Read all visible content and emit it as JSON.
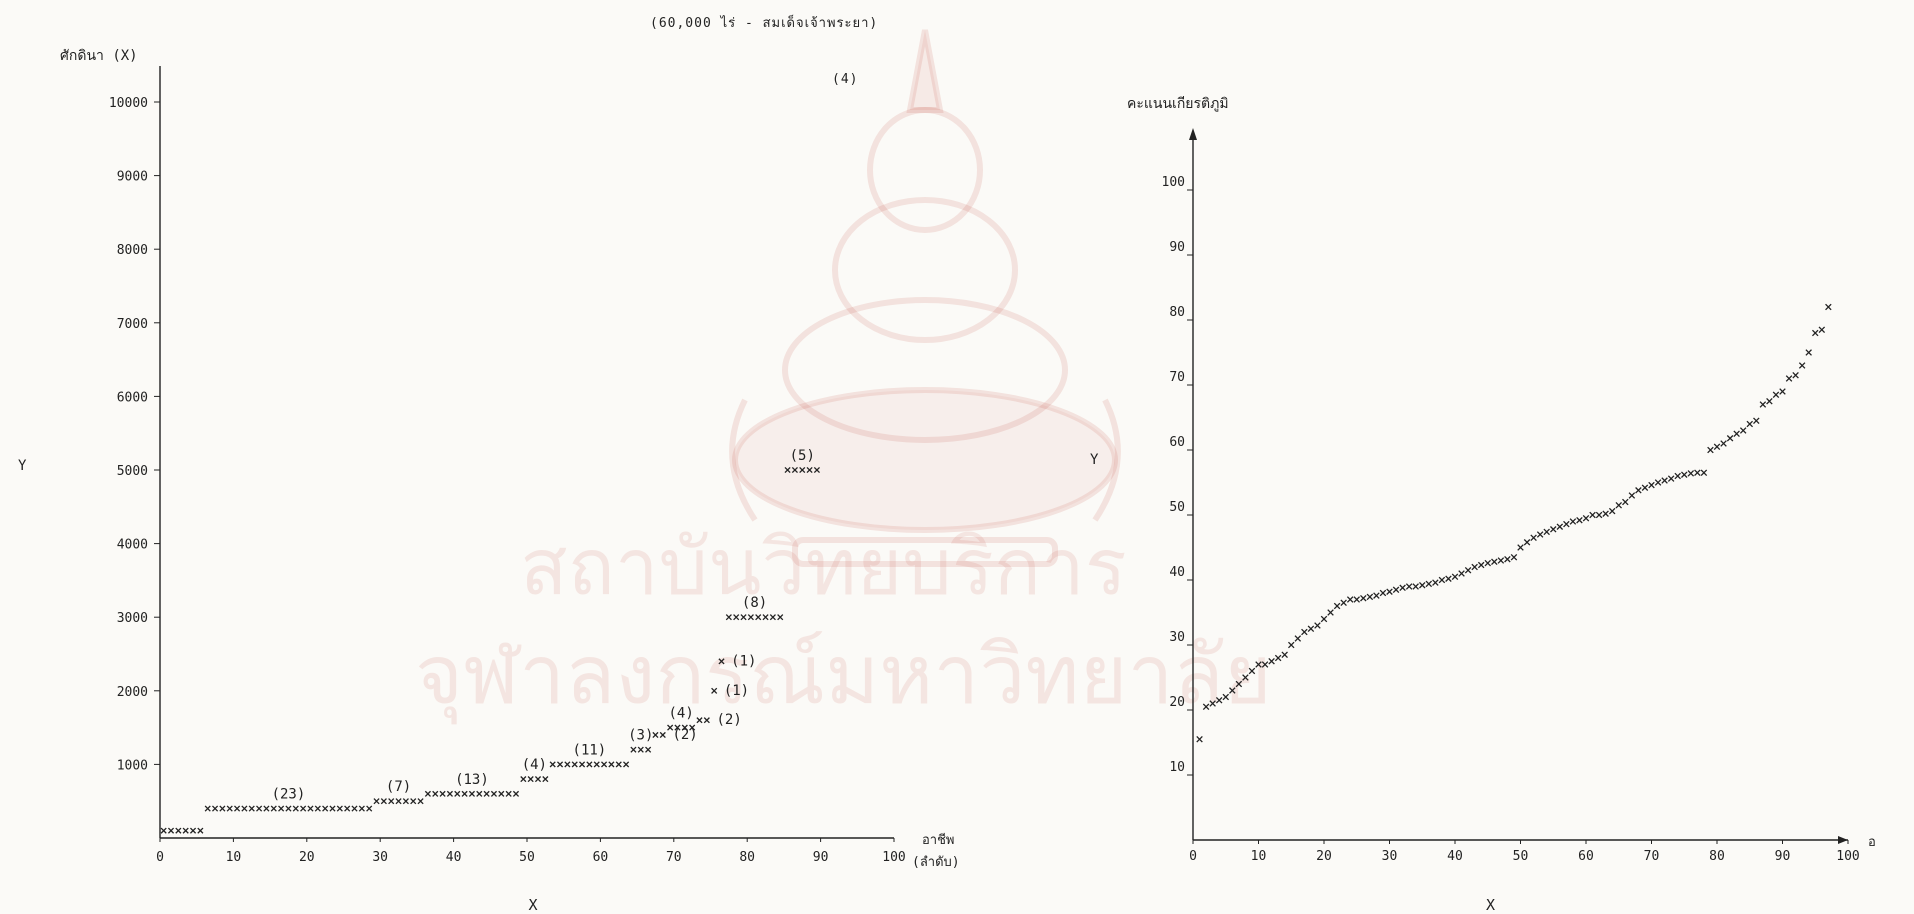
{
  "page": {
    "subtitle": "(60,000 ไร่ - สมเด็จเจ้าพระยา)",
    "top_note": "(4)"
  },
  "watermark": {
    "line1": "สถาบันวิทยบริการ",
    "line2": "จุฬาลงกรณ์มหาวิทยาลัย",
    "color": "#c0392b"
  },
  "chart_data": [
    {
      "type": "scatter",
      "marker": "x",
      "title": "",
      "ylabel": "ศักดินา (X)",
      "ylabel_side": "Y",
      "xlabel": "อาชีพ (ลำดับ)",
      "xlabel_below": "X",
      "xlim": [
        0,
        100
      ],
      "ylim": [
        0,
        10000
      ],
      "x_ticks": [
        0,
        10,
        20,
        30,
        40,
        50,
        60,
        70,
        80,
        90,
        100
      ],
      "y_ticks": [
        1000,
        2000,
        3000,
        4000,
        5000,
        6000,
        7000,
        8000,
        9000,
        10000
      ],
      "segments": [
        {
          "x_start": 0,
          "x_end": 6,
          "y": 100,
          "label": ""
        },
        {
          "x_start": 6,
          "x_end": 29,
          "y": 400,
          "label": "(23)"
        },
        {
          "x_start": 29,
          "x_end": 36,
          "y": 500,
          "label": "(7)"
        },
        {
          "x_start": 36,
          "x_end": 49,
          "y": 600,
          "label": "(13)"
        },
        {
          "x_start": 49,
          "x_end": 53,
          "y": 800,
          "label": "(4)"
        },
        {
          "x_start": 53,
          "x_end": 64,
          "y": 1000,
          "label": "(11)"
        },
        {
          "x_start": 64,
          "x_end": 67,
          "y": 1200,
          "label": "(3)"
        },
        {
          "x_start": 67,
          "x_end": 69,
          "y": 1400,
          "label": "(2)"
        },
        {
          "x_start": 69,
          "x_end": 73,
          "y": 1500,
          "label": "(4)"
        },
        {
          "x_start": 73,
          "x_end": 75,
          "y": 1600,
          "label": "(2)"
        },
        {
          "x_start": 75,
          "x_end": 76,
          "y": 2000,
          "label": "(1)"
        },
        {
          "x_start": 76,
          "x_end": 77,
          "y": 2400,
          "label": "(1)"
        },
        {
          "x_start": 77,
          "x_end": 85,
          "y": 3000,
          "label": "(8)"
        },
        {
          "x_start": 85,
          "x_end": 90,
          "y": 5000,
          "label": "(5)"
        }
      ]
    },
    {
      "type": "scatter",
      "marker": "x",
      "title": "",
      "ylabel": "คะแนนเกียรติภูมิ",
      "ylabel_side": "Y",
      "xlabel": "อ",
      "xlabel_below": "X",
      "xlim": [
        0,
        100
      ],
      "ylim": [
        0,
        100
      ],
      "x_ticks": [
        0,
        10,
        20,
        30,
        40,
        50,
        60,
        70,
        80,
        90,
        100
      ],
      "y_ticks": [
        10,
        20,
        30,
        40,
        50,
        60,
        70,
        80,
        90,
        100
      ],
      "y_values": [
        15.5,
        20.5,
        21,
        21.5,
        22,
        23,
        24,
        25,
        26,
        27,
        27,
        27.5,
        28,
        28.5,
        30,
        31,
        32,
        32.5,
        33,
        34,
        35,
        36,
        36.5,
        37,
        37,
        37.2,
        37.4,
        37.6,
        38,
        38.2,
        38.5,
        38.8,
        39,
        39,
        39.2,
        39.4,
        39.6,
        40,
        40.2,
        40.5,
        41,
        41.5,
        42,
        42.3,
        42.6,
        42.8,
        43,
        43.2,
        43.5,
        45,
        45.8,
        46.5,
        47,
        47.4,
        47.8,
        48.2,
        48.6,
        49,
        49.2,
        49.5,
        50,
        50,
        50.2,
        50.6,
        51.5,
        52,
        53,
        53.8,
        54.2,
        54.6,
        55,
        55.3,
        55.6,
        56,
        56.2,
        56.4,
        56.5,
        56.5,
        60,
        60.5,
        61,
        61.8,
        62.5,
        63,
        64,
        64.5,
        67,
        67.5,
        68.5,
        69,
        71,
        71.5,
        73,
        75,
        78,
        78.5,
        82
      ]
    }
  ]
}
